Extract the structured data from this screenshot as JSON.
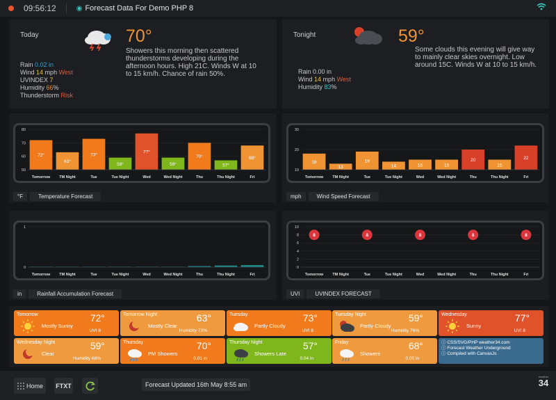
{
  "topbar": {
    "time": "09:56:12",
    "title": "Forecast Data For Demo PHP 8"
  },
  "today": {
    "label": "Today",
    "temp": "70°",
    "desc": "Showers this morning then scattered thunderstorms developing during the afternoon hours. High 21C. Winds W at 10 to 15 km/h. Chance of rain 50%.",
    "rain_label": "Rain",
    "rain_value": "0.02 in",
    "wind_label": "Wind",
    "wind_value": "14",
    "wind_unit": "mph",
    "wind_dir": "West",
    "uv_label": "UVINDEX",
    "uv_value": "7",
    "hum_label": "Humidity",
    "hum_value": "66",
    "hum_unit": "%",
    "thunder_label": "Thunderstorm",
    "thunder_value": "Risk"
  },
  "tonight": {
    "label": "Tonight",
    "temp": "59°",
    "desc": "Some clouds this evening will give way to mainly clear skies overnight. Low around 15C. Winds W at 10 to 15 km/h.",
    "rain_label": "Rain",
    "rain_value": "0.00 in",
    "wind_label": "Wind",
    "wind_value": "14",
    "wind_unit": "mph",
    "wind_dir": "West",
    "hum_label": "Humidity",
    "hum_value": "83",
    "hum_unit": "%"
  },
  "chart_data": [
    {
      "type": "bar",
      "title": "Temperature Forecast",
      "unit": "°F",
      "categories": [
        "Tomorrow",
        "TM Night",
        "Tue",
        "Tue Night",
        "Wed",
        "Wed Night",
        "Thu",
        "Thu Night",
        "Fri"
      ],
      "values": [
        72,
        63,
        73,
        59,
        77,
        59,
        70,
        57,
        68
      ],
      "labels": [
        "72°",
        "63°",
        "73°",
        "59°",
        "77°",
        "59°",
        "70°",
        "57°",
        "68°"
      ],
      "colors": [
        "#f07a1c",
        "#f09433",
        "#f07a1c",
        "#7fb61c",
        "#e0522a",
        "#7fb61c",
        "#f07a1c",
        "#7fb61c",
        "#f09433"
      ],
      "yticks": [
        "50",
        "60",
        "70",
        "80"
      ],
      "ylim": [
        50,
        80
      ]
    },
    {
      "type": "bar",
      "title": "Wind Speed Forecast",
      "unit": "mph",
      "categories": [
        "Tomorrow",
        "TM Night",
        "Tue",
        "Tue Night",
        "Wed",
        "Wed Night",
        "Thu",
        "Thu Night",
        "Fri"
      ],
      "values": [
        18,
        13,
        19,
        14,
        15,
        15,
        20,
        15,
        22
      ],
      "labels": [
        "18",
        "13",
        "19",
        "14",
        "15",
        "15",
        "20",
        "15",
        "22"
      ],
      "colors": [
        "#f09433",
        "#f09433",
        "#f09433",
        "#f09433",
        "#f09433",
        "#f09433",
        "#d8402a",
        "#f09433",
        "#d8402a"
      ],
      "yticks": [
        "10",
        "20",
        "30"
      ],
      "ylim": [
        10,
        30
      ]
    },
    {
      "type": "bar",
      "title": "Rainfall Accumulation Forecast",
      "unit": "in",
      "categories": [
        "Tomorrow",
        "TM Night",
        "Tue",
        "Tue Night",
        "Wed",
        "Wed Night",
        "Thu",
        "Thu Night",
        "Fri"
      ],
      "values": [
        0,
        0,
        0,
        0,
        0,
        0,
        0.01,
        0.04,
        0.05
      ],
      "yticks": [
        "0",
        "1"
      ],
      "ylim": [
        0,
        1
      ]
    },
    {
      "type": "scatter",
      "title": "UVINDEX FORECAST",
      "unit": "UVI",
      "categories": [
        "Tomorrow",
        "TM Night",
        "Tue",
        "Tue Night",
        "Wed",
        "Wed Night",
        "Thu",
        "Thu Night",
        "Fri"
      ],
      "values": [
        8,
        null,
        8,
        null,
        8,
        null,
        8,
        null,
        8
      ],
      "labels": [
        "8",
        "",
        "8",
        "",
        "8",
        "",
        "8",
        "",
        "8"
      ],
      "yticks": [
        "0",
        "2",
        "4",
        "6",
        "8",
        "10"
      ],
      "ylim": [
        0,
        10
      ]
    }
  ],
  "forecast": [
    {
      "name": "Tomorrow",
      "temp": "72°",
      "cond": "Mostly Sunny",
      "extra": "UVI 8",
      "bg": "#f07a1c",
      "icon": "sun"
    },
    {
      "name": "Tomorrow Night",
      "temp": "63°",
      "cond": "Mostly Clear",
      "extra": "Humidity 73%",
      "bg": "#ef9a3e",
      "icon": "moon"
    },
    {
      "name": "Tuesday",
      "temp": "73°",
      "cond": "Partly Cloudy",
      "extra": "UVI 8",
      "bg": "#f07a1c",
      "icon": "cloud"
    },
    {
      "name": "Tuesday Night",
      "temp": "59°",
      "cond": "Partly Cloudy",
      "extra": "Humidity 76%",
      "bg": "#ef9a3e",
      "icon": "nightcloud"
    },
    {
      "name": "Wednesday",
      "temp": "77°",
      "cond": "Sunny",
      "extra": "UVI 8",
      "bg": "#e0522a",
      "icon": "sun"
    },
    {
      "name": "Wednesday Night",
      "temp": "59°",
      "cond": "Clear",
      "extra": "Humidity 68%",
      "bg": "#ef9a3e",
      "icon": "moon"
    },
    {
      "name": "Thursday",
      "temp": "70°",
      "cond": "PM Showers",
      "extra": "0.01 in",
      "bg": "#f07a1c",
      "icon": "rain"
    },
    {
      "name": "Thursday Night",
      "temp": "57°",
      "cond": "Showers Late",
      "extra": "0.04 in",
      "bg": "#7fb61c",
      "icon": "nightrain"
    },
    {
      "name": "Friday",
      "temp": "68°",
      "cond": "Showers",
      "extra": "0.05 in",
      "bg": "#ef9a3e",
      "icon": "rain"
    }
  ],
  "info": {
    "line1": "CSS/SVG/PHP weather34.com",
    "line2": "Forecast Weather Underground",
    "line3": "Compiled with CanvasJs"
  },
  "bottom": {
    "home": "Home",
    "ftxt": "FTXT",
    "updated": "Forecast Updated 16th May 8:55 am",
    "logo_top": "weather",
    "logo_num": "34"
  }
}
